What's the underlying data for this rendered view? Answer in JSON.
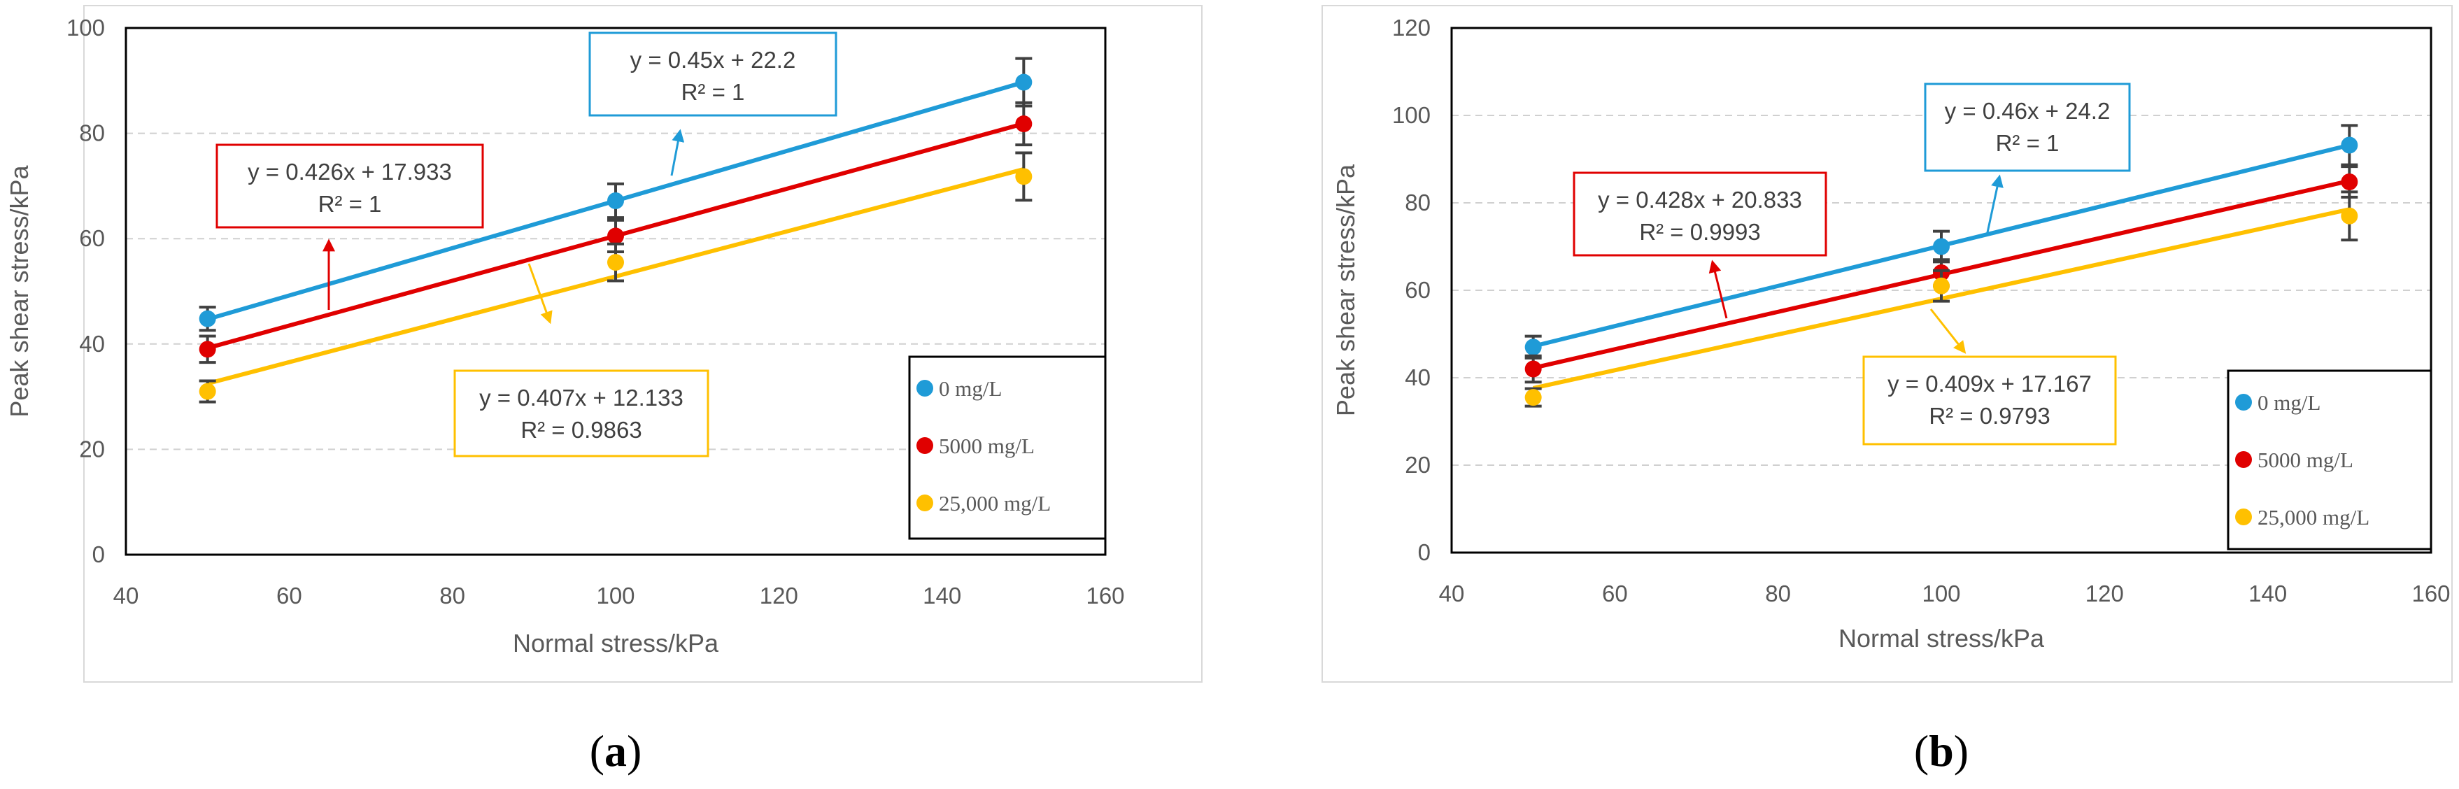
{
  "chart_data": [
    {
      "type": "scatter",
      "caption": "(a)",
      "caption_letter": "a",
      "xlabel": "Normal stress/kPa",
      "ylabel": "Peak shear stress/kPa",
      "xlim": [
        40,
        160
      ],
      "ylim": [
        0,
        100
      ],
      "x_ticks": [
        "40",
        "60",
        "80",
        "100",
        "120",
        "140",
        "160"
      ],
      "y_ticks": [
        "0",
        "20",
        "40",
        "60",
        "80",
        "100"
      ],
      "grid": "horizontal-dashed",
      "legend_position": "bottom-right",
      "series": [
        {
          "name": "0 mg/L",
          "color": "#1f9bd7",
          "x": [
            50,
            100,
            150
          ],
          "values": [
            44.8,
            67.2,
            89.7
          ],
          "errors": [
            2.2,
            3.2,
            4.5
          ],
          "fit": {
            "slope": 0.45,
            "intercept": 22.2
          },
          "equation": "y = 0.45x + 22.2",
          "r2": "R² = 1"
        },
        {
          "name": "5000  mg/L",
          "color": "#e00000",
          "x": [
            50,
            100,
            150
          ],
          "values": [
            39.0,
            60.5,
            81.8
          ],
          "errors": [
            2.5,
            3.0,
            4.0
          ],
          "fit": {
            "slope": 0.426,
            "intercept": 17.933
          },
          "equation": "y = 0.426x + 17.933",
          "r2": "R² = 1"
        },
        {
          "name": "25,000 mg/L",
          "color": "#ffc000",
          "x": [
            50,
            100,
            150
          ],
          "values": [
            31.0,
            55.5,
            71.8
          ],
          "errors": [
            2.0,
            3.5,
            4.5
          ],
          "fit": {
            "slope": 0.407,
            "intercept": 12.133
          },
          "equation": "y = 0.407x + 12.133",
          "r2": "R² = 0.9863"
        }
      ]
    },
    {
      "type": "scatter",
      "caption": "(b)",
      "caption_letter": "b",
      "xlabel": "Normal stress/kPa",
      "ylabel": "Peak shear stress/kPa",
      "xlim": [
        40,
        160
      ],
      "ylim": [
        0,
        120
      ],
      "x_ticks": [
        "40",
        "60",
        "80",
        "100",
        "120",
        "140",
        "160"
      ],
      "y_ticks": [
        "0",
        "20",
        "40",
        "60",
        "80",
        "100",
        "120"
      ],
      "grid": "horizontal-dashed",
      "legend_position": "bottom-right",
      "series": [
        {
          "name": "0 mg/L",
          "color": "#1f9bd7",
          "x": [
            50,
            100,
            150
          ],
          "values": [
            47.0,
            70.0,
            93.2
          ],
          "errors": [
            2.5,
            3.5,
            4.5
          ],
          "fit": {
            "slope": 0.46,
            "intercept": 24.2
          },
          "equation": "y = 0.46x + 24.2",
          "r2": "R² = 1"
        },
        {
          "name": "5000  mg/L",
          "color": "#e00000",
          "x": [
            50,
            100,
            150
          ],
          "values": [
            42.0,
            64.0,
            84.8
          ],
          "errors": [
            3.0,
            3.0,
            3.5
          ],
          "fit": {
            "slope": 0.428,
            "intercept": 20.833
          },
          "equation": "y = 0.428x + 20.833",
          "r2": "R² = 0.9993"
        },
        {
          "name": "25,000 mg/L",
          "color": "#ffc000",
          "x": [
            50,
            100,
            150
          ],
          "values": [
            35.5,
            61.0,
            77.0
          ],
          "errors": [
            2.0,
            3.5,
            5.5
          ],
          "fit": {
            "slope": 0.409,
            "intercept": 17.167
          },
          "equation": "y = 0.409x + 17.167",
          "r2": "R² = 0.9793"
        }
      ]
    }
  ]
}
